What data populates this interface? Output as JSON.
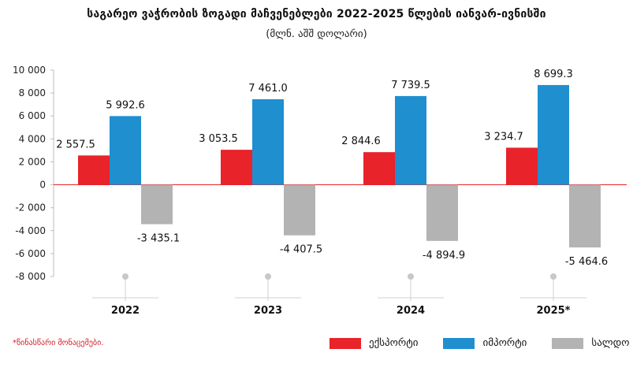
{
  "title": "საგარეო ვაჭრობის ზოგადი მაჩვენებლები 2022-2025 წლების იანვარ-ივნისში",
  "subtitle": "(მლნ. აშშ დოლარი)",
  "footnote": "*წინასწარი მონაცემები.",
  "colors": {
    "export": "#e8232a",
    "import": "#1f8fd0",
    "balance": "#b3b3b3"
  },
  "chart_data": {
    "type": "bar",
    "title": "საგარეო ვაჭრობის ზოგადი მაჩვენებლები 2022-2025 წლების იანვარ-ივნისში",
    "subtitle": "(მლნ. აშშ დოლარი)",
    "categories": [
      "2022",
      "2023",
      "2024",
      "2025*"
    ],
    "series": [
      {
        "name": "ექსპორტი",
        "values": [
          2557.5,
          3053.5,
          2844.6,
          3234.7
        ],
        "labels": [
          "2 557.5",
          "3 053.5",
          "2 844.6",
          "3 234.7"
        ]
      },
      {
        "name": "იმპორტი",
        "values": [
          5992.6,
          7461.0,
          7739.5,
          8699.3
        ],
        "labels": [
          "5 992.6",
          "7 461.0",
          "7 739.5",
          "8 699.3"
        ]
      },
      {
        "name": "სალდო",
        "values": [
          -3435.1,
          -4407.5,
          -4894.9,
          -5464.6
        ],
        "labels": [
          "-3 435.1",
          "-4 407.5",
          "-4 894.9",
          "-5 464.6"
        ]
      }
    ],
    "yticks": [
      10000,
      8000,
      6000,
      4000,
      2000,
      0,
      -2000,
      -4000,
      -6000,
      -8000
    ],
    "ytick_labels": [
      "10 000",
      "8 000",
      "6 000",
      "4 000",
      "2 000",
      "0",
      "-2 000",
      "-4 000",
      "-6 000",
      "-8 000"
    ],
    "ylim": [
      -8000,
      10000
    ],
    "grid": false,
    "legend": "bottom-right"
  }
}
